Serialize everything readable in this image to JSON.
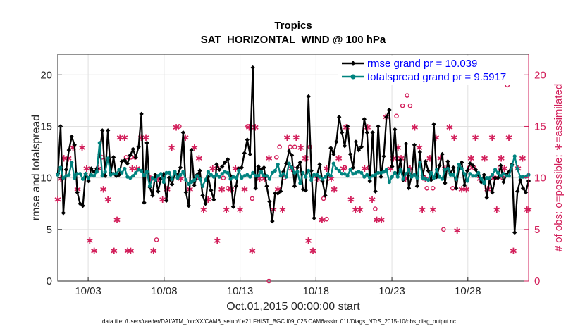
{
  "chart_data": {
    "type": "line",
    "title": "Tropics",
    "subtitle": "SAT_HORIZONTAL_WIND @ 100 hPa",
    "xlabel": "Oct.01,2015 00:00:00 start",
    "ylabel": "rmse and totalspread",
    "ylabel_right": "# of obs: o=possible; ∗=assimilated",
    "footer": "data file: /Users/raeder/DAI/ATM_forcXX/CAM6_setup/f.e21.FHIST_BGC.f09_025.CAM6assim.011/Diags_NTrS_2015-10/obs_diag_output.nc",
    "x_tick_labels": [
      "10/03",
      "10/08",
      "10/13",
      "10/18",
      "10/23",
      "10/28"
    ],
    "x_tick_days": [
      3,
      8,
      13,
      18,
      23,
      28
    ],
    "xlim_days": [
      1,
      32
    ],
    "ylim": [
      0,
      22
    ],
    "ylim_right": [
      0,
      22
    ],
    "y_ticks": [
      0,
      5,
      10,
      15,
      20
    ],
    "y_ticks_right": [
      0,
      5,
      10,
      15,
      20
    ],
    "grid": true,
    "colors": {
      "rmse": "#000000",
      "spread": "#00837f",
      "obs": "#d21e5a",
      "legend_text": "#0000ff",
      "grid": "#e0e0e0"
    },
    "series": [
      {
        "name": "rmse grand pr = 10.039",
        "values": [
          10.4,
          15.0,
          6.6,
          10.8,
          12.7,
          14.0,
          13.2,
          8.6,
          7.5,
          7.3,
          10.4,
          9.7,
          10.9,
          10.6,
          10.9,
          12.3,
          14.6,
          10.2,
          14.6,
          10.5,
          12.0,
          10.2,
          10.3,
          11.6,
          11.7,
          11.4,
          12.2,
          12.8,
          12.0,
          13.0,
          16.2,
          7.6,
          13.4,
          9.1,
          8.3,
          10.3,
          8.7,
          9.9,
          10.4,
          7.8,
          10.0,
          9.4,
          10.4,
          10.3,
          11.0,
          14.4,
          8.6,
          7.3,
          12.7,
          9.3,
          10.3,
          10.7,
          8.3,
          7.5,
          10.1,
          8.8,
          7.9,
          11.3,
          10.8,
          11.1,
          11.5,
          11.8,
          10.2,
          7.2,
          9.2,
          10.9,
          11.0,
          12.4,
          13.7,
          12.3,
          20.7,
          9.0,
          11.1,
          10.8,
          11.0,
          9.2,
          7.7,
          5.8,
          8.5,
          8.5,
          8.7,
          10.6,
          11.4,
          12.6,
          12.2,
          9.2,
          11.0,
          11.5,
          8.9,
          8.8,
          17.9,
          10.7,
          6.1,
          10.2,
          11.3,
          9.7,
          8.3,
          10.3,
          12.9,
          12.3,
          13.5,
          15.9,
          14.4,
          13.1,
          15.0,
          12.3,
          11.0,
          13.5,
          12.7,
          13.0,
          15.7,
          14.4,
          9.7,
          14.4,
          8.7,
          15.0,
          10.1,
          12.1,
          15.9,
          16.6,
          11.1,
          14.7,
          10.5,
          11.7,
          9.8,
          13.3,
          9.0,
          10.2,
          13.2,
          9.2,
          12.5,
          10.2,
          11.6,
          10.7,
          9.8,
          15.2,
          10.1,
          11.2,
          12.3,
          9.5,
          11.6,
          10.4,
          11.0,
          9.0,
          11.0,
          11.5,
          9.3,
          10.7,
          11.4,
          11.2,
          10.8,
          10.3,
          9.6,
          10.3,
          8.1,
          9.9,
          8.6,
          10.0,
          10.0,
          11.2,
          9.6,
          10.3,
          10.6,
          11.3,
          4.7,
          8.7,
          9.8,
          9.0,
          8.6,
          9.7
        ],
        "color": "#000000"
      },
      {
        "name": "totalspread grand pr = 9.5917",
        "values": [
          10.3,
          11.0,
          10.0,
          10.2,
          10.3,
          11.5,
          10.0,
          10.4,
          10.4,
          9.9,
          10.4,
          10.0,
          10.3,
          10.2,
          10.6,
          13.4,
          10.2,
          10.6,
          11.9,
          10.3,
          10.4,
          10.4,
          10.8,
          10.5,
          10.9,
          10.1,
          10.0,
          10.2,
          10.5,
          10.8,
          10.7,
          10.2,
          10.6,
          9.2,
          10.0,
          9.8,
          10.2,
          10.4,
          9.6,
          10.5,
          10.5,
          9.9,
          10.6,
          10.0,
          10.3,
          10.6,
          9.8,
          9.4,
          9.6,
          9.8,
          10.2,
          9.9,
          9.2,
          9.8,
          10.6,
          10.3,
          10.1,
          10.3,
          10.1,
          10.4,
          10.6,
          10.5,
          9.9,
          10.1,
          10.0,
          10.7,
          10.0,
          10.2,
          10.3,
          10.1,
          10.5,
          10.2,
          10.2,
          10.6,
          10.2,
          10.2,
          9.9,
          10.5,
          10.7,
          11.3,
          10.2,
          10.4,
          10.1,
          11.4,
          11.0,
          10.5,
          10.6,
          9.5,
          10.5,
          10.1,
          10.7,
          9.8,
          10.3,
          10.3,
          10.1,
          9.9,
          10.1,
          10.4,
          10.2,
          11.4,
          10.9,
          10.7,
          10.4,
          10.4,
          10.2,
          10.8,
          10.4,
          10.5,
          10.6,
          10.5,
          10.1,
          10.3,
          10.0,
          10.2,
          10.3,
          10.5,
          10.5,
          10.6,
          10.8,
          9.6,
          10.1,
          10.5,
          10.1,
          10.8,
          9.9,
          10.4,
          10.8,
          10.1,
          10.3,
          10.0,
          11.5,
          10.0,
          9.9,
          9.8,
          10.5,
          10.0,
          10.8,
          10.1,
          9.9,
          10.8,
          10.9,
          10.3,
          10.3,
          9.9,
          11.3,
          10.9,
          10.4,
          9.7,
          10.4,
          10.2,
          10.2,
          10.5,
          9.9,
          9.5,
          10.0,
          10.0,
          10.3,
          10.8,
          10.5,
          10.2,
          10.4,
          10.2,
          10.2,
          11.2,
          12.1,
          10.9,
          10.1,
          10.1,
          10.1,
          10.3
        ],
        "color": "#00837f"
      }
    ],
    "obs_possible": [
      {
        "day": 3.9,
        "value": 12
      },
      {
        "day": 5.5,
        "value": 12
      },
      {
        "day": 5.8,
        "value": 12
      },
      {
        "day": 6.1,
        "value": 12
      },
      {
        "day": 7.1,
        "value": 10
      },
      {
        "day": 7.5,
        "value": 4
      },
      {
        "day": 9.0,
        "value": 15
      },
      {
        "day": 10.3,
        "value": 10
      },
      {
        "day": 11.5,
        "value": 11
      },
      {
        "day": 11.9,
        "value": 10
      },
      {
        "day": 12.2,
        "value": 9
      },
      {
        "day": 13.5,
        "value": 15
      },
      {
        "day": 13.8,
        "value": 8
      },
      {
        "day": 14.9,
        "value": 0
      },
      {
        "day": 15.4,
        "value": 12
      },
      {
        "day": 15.6,
        "value": 13
      },
      {
        "day": 15.9,
        "value": 10
      },
      {
        "day": 16.3,
        "value": 13
      },
      {
        "day": 16.6,
        "value": 13
      },
      {
        "day": 17.6,
        "value": 13
      },
      {
        "day": 18.5,
        "value": 8
      },
      {
        "day": 18.7,
        "value": 6
      },
      {
        "day": 19.9,
        "value": 11
      },
      {
        "day": 21.5,
        "value": 11
      },
      {
        "day": 21.9,
        "value": 7
      },
      {
        "day": 23.3,
        "value": 16
      },
      {
        "day": 23.7,
        "value": 17
      },
      {
        "day": 24.0,
        "value": 18
      },
      {
        "day": 24.2,
        "value": 17
      },
      {
        "day": 25.3,
        "value": 9
      },
      {
        "day": 25.7,
        "value": 9
      },
      {
        "day": 26.4,
        "value": 5
      },
      {
        "day": 27.0,
        "value": 9
      },
      {
        "day": 28.1,
        "value": 11
      },
      {
        "day": 28.4,
        "value": 11
      },
      {
        "day": 29.5,
        "value": 10
      },
      {
        "day": 29.8,
        "value": 10
      },
      {
        "day": 30.1,
        "value": 11
      },
      {
        "day": 30.3,
        "value": 10
      },
      {
        "day": 30.6,
        "value": 19
      }
    ],
    "obs_assimilated": [
      {
        "day": 1.0,
        "value": 8
      },
      {
        "day": 1.2,
        "value": 10
      },
      {
        "day": 1.4,
        "value": 12
      },
      {
        "day": 1.7,
        "value": 12
      },
      {
        "day": 2.0,
        "value": 13
      },
      {
        "day": 2.3,
        "value": 9
      },
      {
        "day": 2.6,
        "value": 13
      },
      {
        "day": 2.9,
        "value": 11
      },
      {
        "day": 3.1,
        "value": 4
      },
      {
        "day": 3.4,
        "value": 3
      },
      {
        "day": 3.7,
        "value": 11
      },
      {
        "day": 4.0,
        "value": 9
      },
      {
        "day": 4.3,
        "value": 8
      },
      {
        "day": 4.7,
        "value": 3
      },
      {
        "day": 4.9,
        "value": 6
      },
      {
        "day": 5.1,
        "value": 14
      },
      {
        "day": 5.4,
        "value": 14
      },
      {
        "day": 5.6,
        "value": 3
      },
      {
        "day": 5.8,
        "value": 3
      },
      {
        "day": 5.9,
        "value": 11
      },
      {
        "day": 6.2,
        "value": 11
      },
      {
        "day": 6.5,
        "value": 14
      },
      {
        "day": 6.8,
        "value": 14
      },
      {
        "day": 7.1,
        "value": 10
      },
      {
        "day": 7.3,
        "value": 3
      },
      {
        "day": 7.6,
        "value": 10
      },
      {
        "day": 7.9,
        "value": 8
      },
      {
        "day": 8.2,
        "value": 9
      },
      {
        "day": 8.5,
        "value": 13
      },
      {
        "day": 8.8,
        "value": 15
      },
      {
        "day": 9.1,
        "value": 10
      },
      {
        "day": 9.4,
        "value": 14
      },
      {
        "day": 9.7,
        "value": 9
      },
      {
        "day": 10.0,
        "value": 13
      },
      {
        "day": 10.3,
        "value": 12
      },
      {
        "day": 10.6,
        "value": 7
      },
      {
        "day": 10.9,
        "value": 8
      },
      {
        "day": 11.2,
        "value": 11
      },
      {
        "day": 11.5,
        "value": 4
      },
      {
        "day": 11.8,
        "value": 9
      },
      {
        "day": 12.1,
        "value": 7
      },
      {
        "day": 12.4,
        "value": 9
      },
      {
        "day": 12.7,
        "value": 11
      },
      {
        "day": 13.0,
        "value": 7
      },
      {
        "day": 13.3,
        "value": 9
      },
      {
        "day": 13.6,
        "value": 15
      },
      {
        "day": 13.8,
        "value": 3
      },
      {
        "day": 14.0,
        "value": 15
      },
      {
        "day": 14.3,
        "value": 10
      },
      {
        "day": 14.6,
        "value": 10
      },
      {
        "day": 14.9,
        "value": 12
      },
      {
        "day": 15.2,
        "value": 7
      },
      {
        "day": 15.5,
        "value": 9
      },
      {
        "day": 15.8,
        "value": 7
      },
      {
        "day": 16.1,
        "value": 14
      },
      {
        "day": 16.4,
        "value": 11
      },
      {
        "day": 16.7,
        "value": 14
      },
      {
        "day": 17.0,
        "value": 13
      },
      {
        "day": 17.3,
        "value": 12
      },
      {
        "day": 17.5,
        "value": 4
      },
      {
        "day": 17.8,
        "value": 3
      },
      {
        "day": 18.1,
        "value": 10
      },
      {
        "day": 18.4,
        "value": 6
      },
      {
        "day": 18.7,
        "value": 11
      },
      {
        "day": 19.0,
        "value": 10
      },
      {
        "day": 19.2,
        "value": 9
      },
      {
        "day": 19.5,
        "value": 12
      },
      {
        "day": 19.8,
        "value": 11
      },
      {
        "day": 20.0,
        "value": 15
      },
      {
        "day": 20.3,
        "value": 8
      },
      {
        "day": 20.6,
        "value": 7
      },
      {
        "day": 20.9,
        "value": 7
      },
      {
        "day": 21.2,
        "value": 11
      },
      {
        "day": 21.4,
        "value": 15
      },
      {
        "day": 21.7,
        "value": 8
      },
      {
        "day": 22.0,
        "value": 6
      },
      {
        "day": 22.3,
        "value": 6
      },
      {
        "day": 22.6,
        "value": 16
      },
      {
        "day": 22.9,
        "value": 11
      },
      {
        "day": 23.1,
        "value": 12
      },
      {
        "day": 23.4,
        "value": 13
      },
      {
        "day": 23.6,
        "value": 12
      },
      {
        "day": 23.9,
        "value": 10
      },
      {
        "day": 24.2,
        "value": 11
      },
      {
        "day": 24.5,
        "value": 15
      },
      {
        "day": 24.8,
        "value": 13
      },
      {
        "day": 25.0,
        "value": 7
      },
      {
        "day": 25.2,
        "value": 10
      },
      {
        "day": 25.5,
        "value": 12
      },
      {
        "day": 25.7,
        "value": 7
      },
      {
        "day": 25.9,
        "value": 14
      },
      {
        "day": 26.2,
        "value": 12
      },
      {
        "day": 26.5,
        "value": 11
      },
      {
        "day": 26.8,
        "value": 15
      },
      {
        "day": 27.1,
        "value": 14
      },
      {
        "day": 27.3,
        "value": 5
      },
      {
        "day": 27.6,
        "value": 9
      },
      {
        "day": 27.9,
        "value": 9
      },
      {
        "day": 28.2,
        "value": 12
      },
      {
        "day": 28.5,
        "value": 14
      },
      {
        "day": 28.8,
        "value": 10
      },
      {
        "day": 29.1,
        "value": 12
      },
      {
        "day": 29.3,
        "value": 9
      },
      {
        "day": 29.6,
        "value": 14
      },
      {
        "day": 29.9,
        "value": 7
      },
      {
        "day": 30.2,
        "value": 12
      },
      {
        "day": 30.4,
        "value": 11
      },
      {
        "day": 30.7,
        "value": 14
      },
      {
        "day": 31.0,
        "value": 3
      },
      {
        "day": 31.3,
        "value": 11
      },
      {
        "day": 31.6,
        "value": 12
      },
      {
        "day": 31.9,
        "value": 7
      },
      {
        "day": 32.0,
        "value": 7
      }
    ]
  }
}
